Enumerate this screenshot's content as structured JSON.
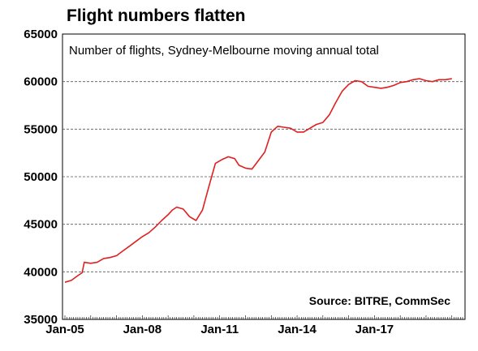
{
  "chart_data": {
    "type": "line",
    "title": "Flight numbers flatten",
    "subtitle": "Number of flights, Sydney-Melbourne moving annual total",
    "source": "Source: BITRE, CommSec",
    "xlabel": "",
    "ylabel": "",
    "ylim": [
      35000,
      65000
    ],
    "yticks": [
      35000,
      40000,
      45000,
      50000,
      55000,
      60000,
      65000
    ],
    "xlim": [
      "2005-01",
      "2020-06"
    ],
    "xticks": [
      "Jan-05",
      "Jan-08",
      "Jan-11",
      "Jan-14",
      "Jan-17"
    ],
    "grid": "horizontal dashed",
    "line_color": "#e02020",
    "series": [
      {
        "x": [
          "2005-01",
          "2005-04",
          "2005-07",
          "2005-09",
          "2005-10",
          "2006-01",
          "2006-04",
          "2006-07",
          "2006-10",
          "2007-01",
          "2007-04",
          "2007-07",
          "2007-10",
          "2008-01",
          "2008-04",
          "2008-07",
          "2008-10",
          "2009-01",
          "2009-03",
          "2009-05",
          "2009-08",
          "2009-11",
          "2010-02",
          "2010-05",
          "2010-08",
          "2010-11",
          "2011-02",
          "2011-05",
          "2011-08",
          "2011-10",
          "2012-01",
          "2012-04",
          "2012-07",
          "2012-10",
          "2013-01",
          "2013-04",
          "2013-07",
          "2013-10",
          "2014-01",
          "2014-04",
          "2014-07",
          "2014-10",
          "2015-01",
          "2015-04",
          "2015-07",
          "2015-10",
          "2016-01",
          "2016-04",
          "2016-07",
          "2016-10",
          "2017-01",
          "2017-04",
          "2017-07",
          "2017-10",
          "2018-01",
          "2018-04",
          "2018-07",
          "2018-10",
          "2019-01",
          "2019-04",
          "2019-07",
          "2019-10",
          "2020-01"
        ],
        "values": [
          38900,
          39100,
          39600,
          39900,
          41000,
          40900,
          41000,
          41400,
          41500,
          41700,
          42200,
          42700,
          43200,
          43700,
          44100,
          44700,
          45400,
          46000,
          46500,
          46800,
          46600,
          45800,
          45400,
          46500,
          49000,
          51400,
          51800,
          52100,
          51900,
          51200,
          50900,
          50800,
          51700,
          52600,
          54700,
          55300,
          55200,
          55100,
          54700,
          54700,
          55100,
          55500,
          55700,
          56500,
          57800,
          59000,
          59700,
          60100,
          60000,
          59500,
          59400,
          59300,
          59400,
          59600,
          59900,
          60000,
          60200,
          60300,
          60100,
          60000,
          60200,
          60200,
          60300
        ]
      }
    ]
  }
}
